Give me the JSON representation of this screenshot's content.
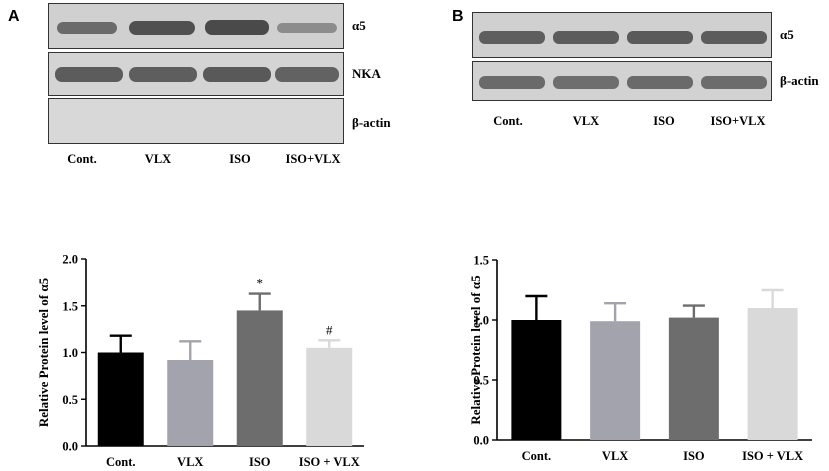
{
  "panels": [
    {
      "letter": "A",
      "blot_bands": [
        "α5",
        "NKA",
        "β-actin"
      ],
      "lane_labels": [
        "Cont.",
        "VLX",
        "ISO",
        "ISO+VLX"
      ]
    },
    {
      "letter": "B",
      "blot_bands": [
        "α5",
        "β-actin"
      ],
      "lane_labels": [
        "Cont.",
        "VLX",
        "ISO",
        "ISO+VLX"
      ]
    }
  ],
  "colors": {
    "bar_fills": [
      "#000000",
      "#a3a3ad",
      "#6d6d6d",
      "#d9d9d9"
    ],
    "axis": "#000000",
    "blot_background": "#d4d4d4",
    "blot_band": "#5a5a5a"
  },
  "chart_data": [
    {
      "type": "bar",
      "panel": "A",
      "categories": [
        "Cont.",
        "VLX",
        "ISO",
        "ISO + VLX"
      ],
      "values": [
        1.0,
        0.92,
        1.45,
        1.05
      ],
      "errors": [
        0.18,
        0.2,
        0.18,
        0.08
      ],
      "annotations": [
        "",
        "",
        "*",
        "#"
      ],
      "ylabel": "Relative Protein level of α5",
      "xlabel": "",
      "ylim": [
        0,
        2.0
      ],
      "yticks": [
        "0.0",
        "0.5",
        "1.0",
        "1.5",
        "2.0"
      ],
      "grid": false
    },
    {
      "type": "bar",
      "panel": "B",
      "categories": [
        "Cont.",
        "VLX",
        "ISO",
        "ISO + VLX"
      ],
      "values": [
        1.0,
        0.99,
        1.02,
        1.1
      ],
      "errors": [
        0.2,
        0.15,
        0.1,
        0.15
      ],
      "annotations": [
        "",
        "",
        "",
        ""
      ],
      "ylabel": "Relative Protein level of α5",
      "xlabel": "",
      "ylim": [
        0,
        1.5
      ],
      "yticks": [
        "0.0",
        "0.5",
        "1.0",
        "1.5"
      ],
      "grid": false
    }
  ]
}
